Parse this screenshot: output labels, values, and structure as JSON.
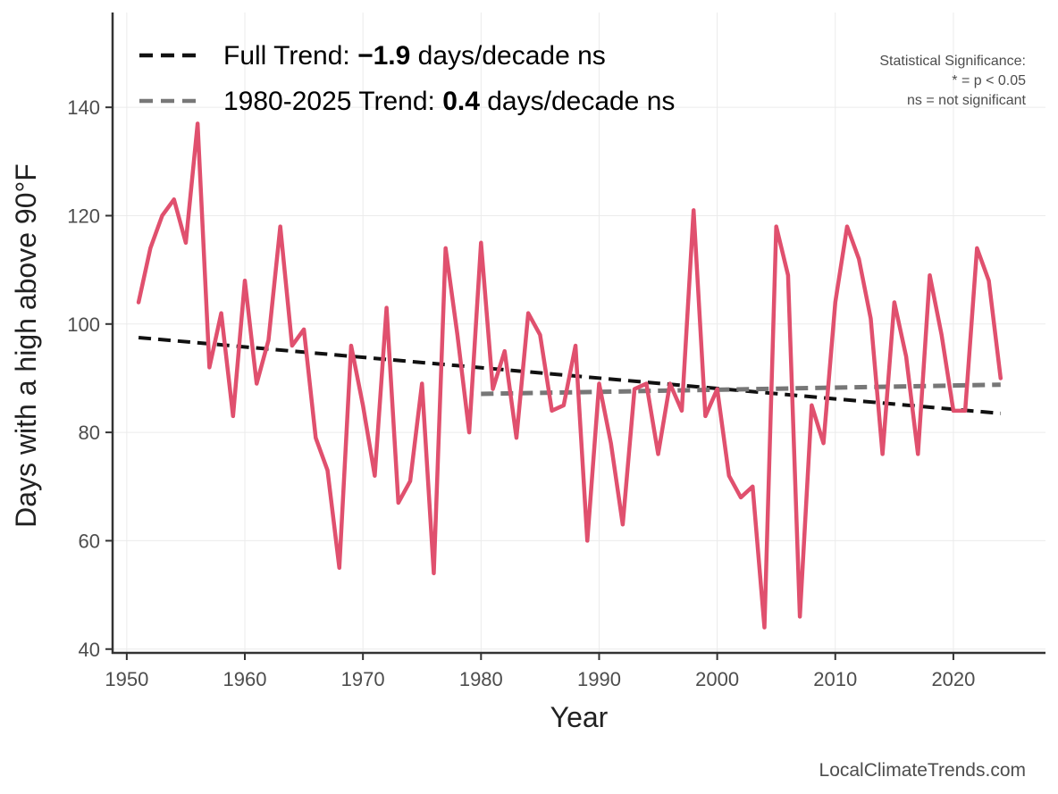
{
  "chart_data": {
    "type": "line",
    "xlabel": "Year",
    "ylabel": "Days with a high above 90°F",
    "xlim": [
      1948.8,
      2027.8
    ],
    "ylim": [
      39.3,
      157.5
    ],
    "xticks": [
      1950,
      1960,
      1970,
      1980,
      1990,
      2000,
      2010,
      2020
    ],
    "yticks": [
      40,
      60,
      80,
      100,
      120,
      140
    ],
    "xtick_labels": [
      "1950",
      "1960",
      "1970",
      "1980",
      "1990",
      "2000",
      "2010",
      "2020"
    ],
    "ytick_labels": [
      "40",
      "60",
      "80",
      "100",
      "120",
      "140"
    ],
    "grid": true,
    "series": [
      {
        "name": "Days above 90°F",
        "color": "#e0506e",
        "x": [
          1951,
          1952,
          1953,
          1954,
          1955,
          1956,
          1957,
          1958,
          1959,
          1960,
          1961,
          1962,
          1963,
          1964,
          1965,
          1966,
          1967,
          1968,
          1969,
          1970,
          1971,
          1972,
          1973,
          1974,
          1975,
          1976,
          1977,
          1978,
          1979,
          1980,
          1981,
          1982,
          1983,
          1984,
          1985,
          1986,
          1987,
          1988,
          1989,
          1990,
          1991,
          1992,
          1993,
          1994,
          1995,
          1996,
          1997,
          1998,
          1999,
          2000,
          2001,
          2002,
          2003,
          2004,
          2005,
          2006,
          2007,
          2008,
          2009,
          2010,
          2011,
          2012,
          2013,
          2014,
          2015,
          2016,
          2017,
          2018,
          2019,
          2020,
          2021,
          2022,
          2023,
          2024
        ],
        "y": [
          104,
          114,
          120,
          123,
          115,
          137,
          92,
          102,
          83,
          108,
          89,
          97,
          118,
          96,
          99,
          79,
          73,
          55,
          96,
          85,
          72,
          103,
          67,
          71,
          89,
          54,
          114,
          98,
          80,
          115,
          88,
          95,
          79,
          102,
          98,
          84,
          85,
          96,
          60,
          89,
          78,
          63,
          88,
          89,
          76,
          89,
          84,
          121,
          83,
          88,
          72,
          68,
          70,
          44,
          118,
          109,
          46,
          85,
          78,
          104,
          118,
          112,
          101,
          76,
          104,
          94,
          76,
          109,
          98,
          84,
          84,
          114,
          108,
          90
        ]
      }
    ],
    "trends": [
      {
        "name": "Full Trend",
        "color": "#111111",
        "x": [
          1951,
          2024
        ],
        "y": [
          97.5,
          83.5
        ]
      },
      {
        "name": "1980-2025 Trend",
        "color": "#777777",
        "x": [
          1980,
          2024
        ],
        "y": [
          87.1,
          88.8
        ]
      }
    ],
    "legend": {
      "position": "top-left",
      "entries": [
        {
          "prefix": "Full Trend: ",
          "value": "−1.9",
          "suffix": " days/decade ns",
          "color": "#111111"
        },
        {
          "prefix": "1980-2025 Trend: ",
          "value": "0.4",
          "suffix": " days/decade ns",
          "color": "#777777"
        }
      ]
    },
    "annotation": {
      "position": "top-right",
      "lines": [
        "Statistical Significance:",
        "* = p < 0.05",
        "ns = not significant"
      ]
    },
    "credit": "LocalClimateTrends.com"
  }
}
